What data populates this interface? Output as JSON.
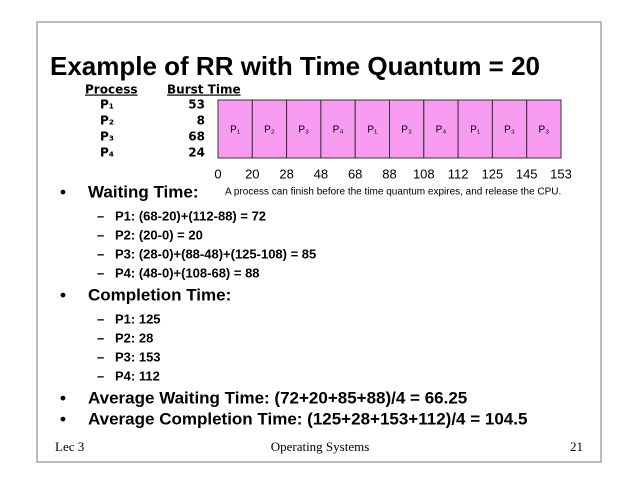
{
  "title": "Example of RR with Time Quantum = 20",
  "process_table": {
    "headers": [
      "Process",
      "Burst Time"
    ],
    "rows": [
      [
        "P₁",
        53
      ],
      [
        "P₂",
        8
      ],
      [
        "P₃",
        68
      ],
      [
        "P₄",
        24
      ]
    ]
  },
  "gantt": {
    "blocks": [
      "P₁",
      "P₂",
      "P₃",
      "P₄",
      "P₁",
      "P₃",
      "P₄",
      "P₁",
      "P₃",
      "P₃"
    ],
    "times": [
      0,
      20,
      28,
      48,
      68,
      88,
      108,
      112,
      125,
      145,
      153
    ],
    "note": "A process can finish before the time quantum expires, and release the CPU."
  },
  "bullets": [
    {
      "text": "Waiting Time:",
      "items": [
        "P1: (68-20)+(112-88) = 72",
        "P2: (20-0) = 20",
        "P3: (28-0)+(88-48)+(125-108) = 85",
        "P4: (48-0)+(108-68) = 88"
      ]
    },
    {
      "text": "Completion Time:",
      "items": [
        "P1: 125",
        "P2: 28",
        "P3: 153",
        "P4: 112"
      ]
    },
    {
      "text": "Average Waiting Time: (72+20+85+88)/4 = 66.25",
      "items": []
    },
    {
      "text": "Average Completion Time: (125+28+153+112)/4 = 104.5",
      "items": []
    }
  ],
  "footer": {
    "left": "Lec 3",
    "center": "Operating Systems",
    "right": "21"
  }
}
